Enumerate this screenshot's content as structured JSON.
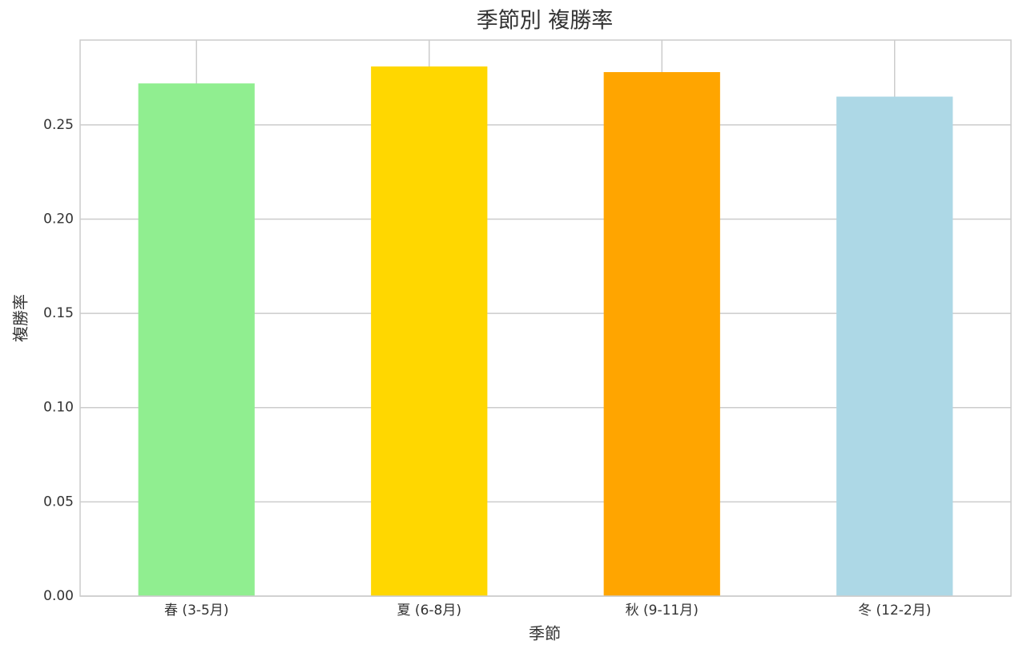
{
  "chart_data": {
    "type": "bar",
    "title": "季節別 複勝率",
    "x_label": "季節",
    "y_label": "複勝率",
    "categories": [
      "春 (3-5月)",
      "夏 (6-8月)",
      "秋 (9-11月)",
      "冬 (12-2月)"
    ],
    "values": [
      0.272,
      0.281,
      0.278,
      0.265
    ],
    "colors": [
      "#90ee90",
      "#ffd700",
      "#ffa500",
      "#add8e6"
    ],
    "ylim": [
      0,
      0.295
    ],
    "yticks": [
      {
        "value": 0,
        "label": "0.00"
      },
      {
        "value": 0.05,
        "label": "0.05"
      },
      {
        "value": 0.1,
        "label": "0.10"
      },
      {
        "value": 0.15,
        "label": "0.15"
      },
      {
        "value": 0.2,
        "label": "0.20"
      },
      {
        "value": 0.25,
        "label": "0.25"
      }
    ],
    "grid": true
  }
}
